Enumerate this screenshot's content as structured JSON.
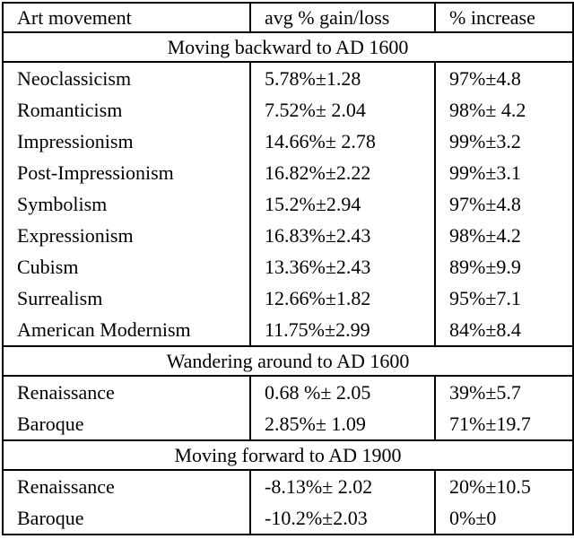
{
  "colors": {
    "background": "#ffffff",
    "text": "#000000",
    "border": "#000000"
  },
  "table": {
    "columns": [
      "Art movement",
      "avg % gain/loss",
      "% increase"
    ],
    "sections": [
      {
        "title": "Moving backward to AD 1600",
        "rows": [
          {
            "movement": "Neoclassicism",
            "avg_gain_loss": "5.78%±1.28",
            "pct_increase": "97%±4.8"
          },
          {
            "movement": "Romanticism",
            "avg_gain_loss": "7.52%± 2.04",
            "pct_increase": "98%± 4.2"
          },
          {
            "movement": "Impressionism",
            "avg_gain_loss": "14.66%± 2.78",
            "pct_increase": "99%±3.2"
          },
          {
            "movement": "Post-Impressionism",
            "avg_gain_loss": "16.82%±2.22",
            "pct_increase": "99%±3.1"
          },
          {
            "movement": "Symbolism",
            "avg_gain_loss": "15.2%±2.94",
            "pct_increase": "97%±4.8"
          },
          {
            "movement": "Expressionism",
            "avg_gain_loss": "16.83%±2.43",
            "pct_increase": "98%±4.2"
          },
          {
            "movement": "Cubism",
            "avg_gain_loss": "13.36%±2.43",
            "pct_increase": "89%±9.9"
          },
          {
            "movement": "Surrealism",
            "avg_gain_loss": "12.66%±1.82",
            "pct_increase": "95%±7.1"
          },
          {
            "movement": "American Modernism",
            "avg_gain_loss": "11.75%±2.99",
            "pct_increase": "84%±8.4"
          }
        ]
      },
      {
        "title": "Wandering around to AD 1600",
        "rows": [
          {
            "movement": "Renaissance",
            "avg_gain_loss": "0.68 %± 2.05",
            "pct_increase": "39%±5.7"
          },
          {
            "movement": "Baroque",
            "avg_gain_loss": "2.85%± 1.09",
            "pct_increase": "71%±19.7"
          }
        ]
      },
      {
        "title": "Moving forward to AD 1900",
        "rows": [
          {
            "movement": "Renaissance",
            "avg_gain_loss": "-8.13%± 2.02",
            "pct_increase": "20%±10.5"
          },
          {
            "movement": "Baroque",
            "avg_gain_loss": "-10.2%±2.03",
            "pct_increase": "0%±0"
          }
        ]
      }
    ]
  }
}
